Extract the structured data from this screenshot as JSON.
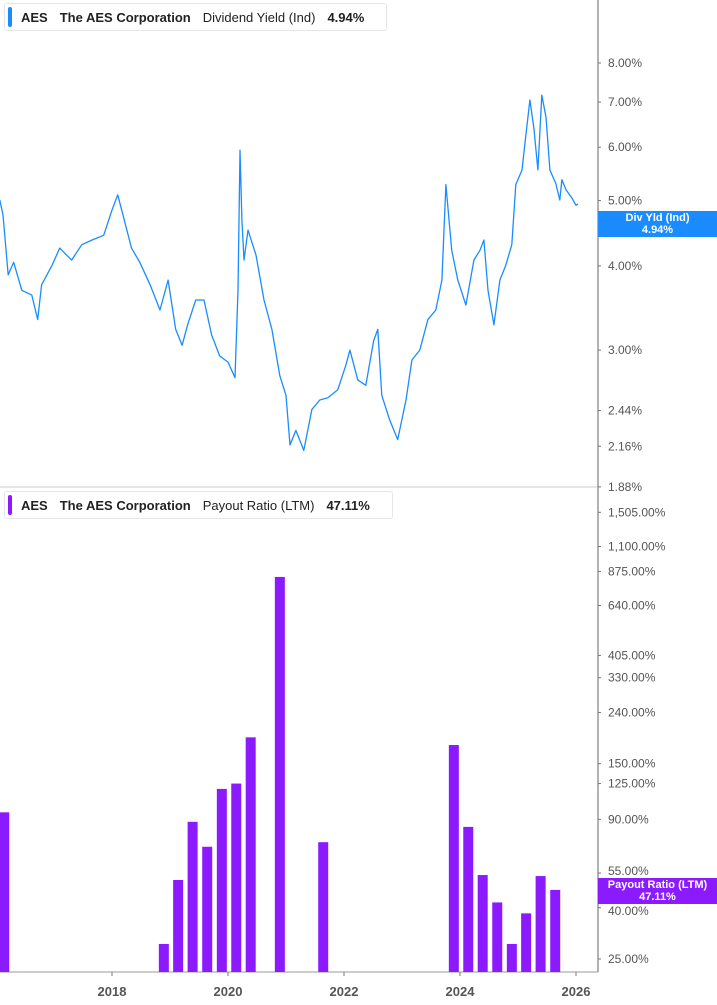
{
  "colors": {
    "yield": "#1a8cff",
    "payout": "#8b1aff",
    "axis": "#999999",
    "text": "#555555"
  },
  "top_legend": {
    "ticker": "AES",
    "company": "The AES Corporation",
    "metric": "Dividend Yield (Ind)",
    "value": "4.94%"
  },
  "bottom_legend": {
    "ticker": "AES",
    "company": "The AES Corporation",
    "metric": "Payout Ratio (LTM)",
    "value": "47.11%"
  },
  "top_badge": {
    "label": "Div Yld (Ind)",
    "value": "4.94%"
  },
  "bottom_badge": {
    "label": "Payout Ratio (LTM)",
    "value": "47.11%"
  },
  "chart_data": [
    {
      "type": "line",
      "series": [
        {
          "name": "Dividend Yield (Ind)",
          "color": "#1a8cff"
        }
      ],
      "yscale": "log",
      "ylim": [
        1.88,
        8.6
      ],
      "yticks": [
        8.0,
        7.0,
        6.0,
        5.0,
        4.0,
        3.0,
        2.44,
        2.16,
        1.88
      ],
      "ytick_labels": [
        "8.00%",
        "7.00%",
        "6.00%",
        "5.00%",
        "4.00%",
        "3.00%",
        "2.44%",
        "2.16%",
        "1.88%"
      ],
      "last_value": 4.94,
      "points": [
        [
          "2016-01-25",
          5.01
        ],
        [
          "2016-02-14",
          4.76
        ],
        [
          "2016-03-18",
          3.88
        ],
        [
          "2016-04-22",
          4.05
        ],
        [
          "2016-06-12",
          3.68
        ],
        [
          "2016-08-14",
          3.62
        ],
        [
          "2016-09-20",
          3.33
        ],
        [
          "2016-10-15",
          3.75
        ],
        [
          "2016-12-20",
          4.01
        ],
        [
          "2017-02-06",
          4.25
        ],
        [
          "2017-04-22",
          4.08
        ],
        [
          "2017-06-25",
          4.3
        ],
        [
          "2017-08-29",
          4.37
        ],
        [
          "2017-11-10",
          4.44
        ],
        [
          "2018-01-01",
          4.84
        ],
        [
          "2018-02-06",
          5.1
        ],
        [
          "2018-03-03",
          4.84
        ],
        [
          "2018-05-04",
          4.25
        ],
        [
          "2018-06-25",
          4.05
        ],
        [
          "2018-08-29",
          3.75
        ],
        [
          "2018-10-30",
          3.44
        ],
        [
          "2018-12-20",
          3.81
        ],
        [
          "2019-02-06",
          3.22
        ],
        [
          "2019-03-18",
          3.05
        ],
        [
          "2019-04-22",
          3.27
        ],
        [
          "2019-06-12",
          3.56
        ],
        [
          "2019-08-03",
          3.56
        ],
        [
          "2019-09-20",
          3.16
        ],
        [
          "2019-11-10",
          2.94
        ],
        [
          "2020-01-01",
          2.88
        ],
        [
          "2020-02-14",
          2.73
        ],
        [
          "2020-03-04",
          3.68
        ],
        [
          "2020-03-17",
          5.94
        ],
        [
          "2020-03-29",
          4.68
        ],
        [
          "2020-04-11",
          4.08
        ],
        [
          "2020-05-06",
          4.52
        ],
        [
          "2020-06-26",
          4.15
        ],
        [
          "2020-08-15",
          3.56
        ],
        [
          "2020-10-04",
          3.22
        ],
        [
          "2020-11-23",
          2.75
        ],
        [
          "2021-01-01",
          2.57
        ],
        [
          "2021-01-26",
          2.17
        ],
        [
          "2021-03-04",
          2.28
        ],
        [
          "2021-04-23",
          2.13
        ],
        [
          "2021-06-13",
          2.45
        ],
        [
          "2021-08-02",
          2.53
        ],
        [
          "2021-09-21",
          2.55
        ],
        [
          "2021-11-23",
          2.62
        ],
        [
          "2022-01-13",
          2.85
        ],
        [
          "2022-02-07",
          3.0
        ],
        [
          "2022-03-29",
          2.71
        ],
        [
          "2022-05-18",
          2.66
        ],
        [
          "2022-07-07",
          3.1
        ],
        [
          "2022-08-02",
          3.22
        ],
        [
          "2022-08-27",
          2.57
        ],
        [
          "2022-10-16",
          2.36
        ],
        [
          "2022-12-05",
          2.21
        ],
        [
          "2023-01-26",
          2.53
        ],
        [
          "2023-03-04",
          2.9
        ],
        [
          "2023-04-23",
          3.0
        ],
        [
          "2023-06-13",
          3.33
        ],
        [
          "2023-08-02",
          3.44
        ],
        [
          "2023-09-09",
          3.81
        ],
        [
          "2023-10-04",
          5.28
        ],
        [
          "2023-11-10",
          4.22
        ],
        [
          "2023-12-18",
          3.81
        ],
        [
          "2024-02-07",
          3.5
        ],
        [
          "2024-03-29",
          4.08
        ],
        [
          "2024-05-06",
          4.22
        ],
        [
          "2024-05-31",
          4.37
        ],
        [
          "2024-06-26",
          3.68
        ],
        [
          "2024-08-02",
          3.27
        ],
        [
          "2024-09-09",
          3.81
        ],
        [
          "2024-10-16",
          4.01
        ],
        [
          "2024-11-23",
          4.3
        ],
        [
          "2024-12-18",
          5.28
        ],
        [
          "2025-01-26",
          5.55
        ],
        [
          "2025-02-20",
          6.26
        ],
        [
          "2025-03-17",
          7.05
        ],
        [
          "2025-04-11",
          6.4
        ],
        [
          "2025-05-06",
          5.55
        ],
        [
          "2025-05-31",
          7.17
        ],
        [
          "2025-06-26",
          6.65
        ],
        [
          "2025-07-21",
          5.55
        ],
        [
          "2025-08-27",
          5.3
        ],
        [
          "2025-09-21",
          5.01
        ],
        [
          "2025-10-04",
          5.37
        ],
        [
          "2025-10-30",
          5.19
        ],
        [
          "2025-12-05",
          5.05
        ],
        [
          "2026-01-01",
          4.92
        ],
        [
          "2026-01-13",
          4.94
        ]
      ]
    },
    {
      "type": "bar",
      "series": [
        {
          "name": "Payout Ratio (LTM)",
          "color": "#8b1aff"
        }
      ],
      "yscale": "log",
      "ylim": [
        22,
        1700
      ],
      "yticks": [
        1505,
        1100,
        875,
        640,
        405,
        330,
        240,
        150,
        125,
        90,
        55,
        40,
        25
      ],
      "ytick_labels": [
        "1,505.00%",
        "1,100.00%",
        "875.00%",
        "640.00%",
        "405.00%",
        "330.00%",
        "240.00%",
        "150.00%",
        "125.00%",
        "90.00%",
        "55.00%",
        "40.00%",
        "25.00%"
      ],
      "last_value": 47.11,
      "bars": [
        [
          "2016-03-31",
          96
        ],
        [
          "2018-12-31",
          28.7
        ],
        [
          "2019-03-31",
          51.6
        ],
        [
          "2019-06-30",
          88
        ],
        [
          "2019-09-30",
          70
        ],
        [
          "2019-12-31",
          119
        ],
        [
          "2020-03-31",
          125
        ],
        [
          "2020-06-30",
          191
        ],
        [
          "2020-12-31",
          832
        ],
        [
          "2021-09-30",
          73
        ],
        [
          "2023-12-31",
          178
        ],
        [
          "2024-03-31",
          84
        ],
        [
          "2024-06-30",
          54
        ],
        [
          "2024-09-30",
          42
        ],
        [
          "2024-12-31",
          28.7
        ],
        [
          "2025-03-31",
          38
        ],
        [
          "2025-06-30",
          53.5
        ],
        [
          "2025-09-30",
          47.11
        ]
      ]
    }
  ],
  "x_axis": {
    "ticks": [
      "2018",
      "2020",
      "2022",
      "2024",
      "2026"
    ]
  }
}
